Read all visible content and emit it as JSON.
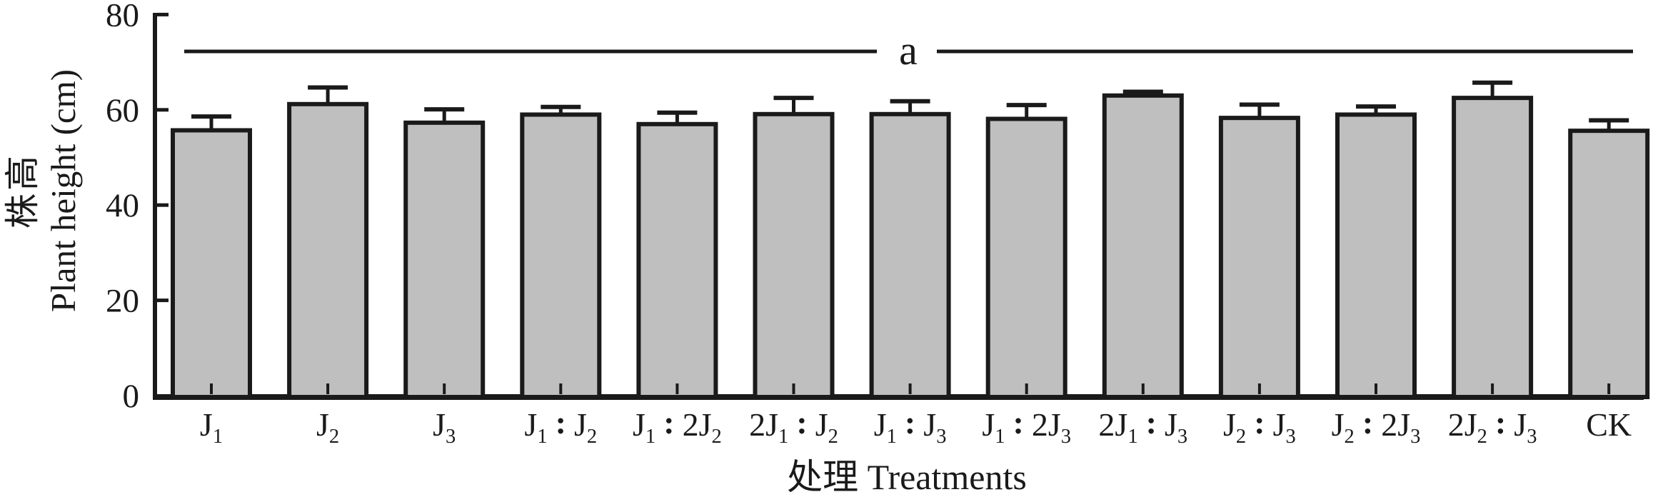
{
  "figure": {
    "x_axis": {
      "title": "处理 Treatments"
    },
    "y_axis": {
      "title_cn": "株高",
      "title_en": "Plant height (cm)"
    }
  },
  "chart_data": {
    "type": "bar",
    "title": "",
    "xlabel": "处理 Treatments",
    "ylabel": "株高 Plant height (cm)",
    "categories": [
      "J₁",
      "J₂",
      "J₃",
      "J₁：J₂",
      "J₁：2J₂",
      "2J₁：J₂",
      "J₁：J₃",
      "J₁：2J₃",
      "2J₁：J₃",
      "J₂：J₃",
      "J₂：2J₃",
      "2J₂：J₃",
      "CK"
    ],
    "values": [
      55.7,
      61.2,
      57.3,
      59.0,
      57.0,
      59.1,
      59.1,
      58.1,
      63.0,
      58.3,
      59.0,
      62.5,
      55.6
    ],
    "error_bars": [
      2.9,
      3.5,
      2.8,
      1.6,
      2.4,
      3.4,
      2.7,
      2.9,
      0.8,
      2.8,
      1.7,
      3.2,
      2.2
    ],
    "ylim": [
      0,
      80
    ],
    "yticks": [
      0,
      20,
      40,
      60,
      80
    ],
    "grid": false,
    "legend": "none",
    "bar_fill": "#bfbfbf",
    "bar_edge": "#1a1a1a",
    "significance": {
      "label": "a",
      "y": 72.5,
      "applies_to": "all bars"
    }
  }
}
